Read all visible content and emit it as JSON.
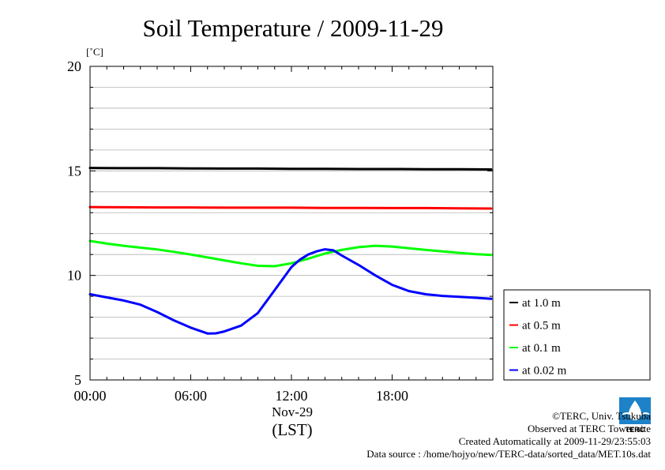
{
  "unit_label": "[˚C]",
  "footer": {
    "copyright": "©TERC, Univ. Tsukuba",
    "observed": "Observed at TERC Tower site",
    "created": "Created Automatically at 2009-11-29/23:55:03",
    "source": "Data source : /home/hojyo/new/TERC-data/sorted_data/MET.10s.dat",
    "logo_text": "TERC"
  },
  "chart_data": {
    "type": "line",
    "title": "Soil Temperature / 2009-11-29",
    "xlabel": "(LST)",
    "x_date_label": "Nov-29",
    "ylabel": "[˚C]",
    "xlim": [
      0,
      24
    ],
    "ylim": [
      5,
      20
    ],
    "x_ticks": [
      0,
      6,
      12,
      18
    ],
    "x_tick_labels": [
      "00:00",
      "06:00",
      "12:00",
      "18:00"
    ],
    "y_ticks": [
      5,
      10,
      15,
      20
    ],
    "y_tick_labels": [
      "5",
      "10",
      "15",
      "20"
    ],
    "grid": true,
    "legend_position": "right",
    "series": [
      {
        "name": "at 1.0 m",
        "color": "#000000",
        "x": [
          0,
          2,
          4,
          6,
          8,
          10,
          12,
          14,
          16,
          18,
          20,
          22,
          23.9
        ],
        "y": [
          15.14,
          15.13,
          15.13,
          15.12,
          15.11,
          15.11,
          15.1,
          15.1,
          15.09,
          15.09,
          15.08,
          15.08,
          15.07
        ]
      },
      {
        "name": "at 0.5 m",
        "color": "#ff0000",
        "x": [
          0,
          2,
          4,
          6,
          8,
          10,
          12,
          14,
          16,
          18,
          20,
          22,
          23.9
        ],
        "y": [
          13.27,
          13.26,
          13.25,
          13.25,
          13.24,
          13.24,
          13.24,
          13.23,
          13.23,
          13.22,
          13.22,
          13.21,
          13.2
        ]
      },
      {
        "name": "at 0.1 m",
        "color": "#00ff00",
        "x": [
          0,
          1,
          2,
          3,
          4,
          5,
          6,
          7,
          8,
          9,
          10,
          11,
          12,
          13,
          14,
          15,
          16,
          17,
          18,
          19,
          20,
          21,
          22,
          23,
          23.9
        ],
        "y": [
          11.65,
          11.52,
          11.42,
          11.33,
          11.24,
          11.13,
          11.0,
          10.86,
          10.72,
          10.58,
          10.46,
          10.44,
          10.58,
          10.8,
          11.05,
          11.22,
          11.35,
          11.42,
          11.38,
          11.3,
          11.22,
          11.15,
          11.08,
          11.02,
          10.98
        ]
      },
      {
        "name": "at 0.02 m",
        "color": "#0000ff",
        "x": [
          0,
          1,
          2,
          3,
          4,
          5,
          6,
          7,
          7.5,
          8,
          9,
          10,
          11,
          12,
          12.5,
          13,
          13.5,
          14,
          14.5,
          15,
          16,
          17,
          18,
          19,
          20,
          21,
          22,
          23,
          23.9
        ],
        "y": [
          9.1,
          8.95,
          8.8,
          8.6,
          8.25,
          7.85,
          7.5,
          7.22,
          7.23,
          7.32,
          7.6,
          8.2,
          9.3,
          10.4,
          10.75,
          11.0,
          11.15,
          11.25,
          11.2,
          10.95,
          10.5,
          10.0,
          9.55,
          9.25,
          9.1,
          9.02,
          8.98,
          8.93,
          8.88
        ]
      }
    ]
  }
}
